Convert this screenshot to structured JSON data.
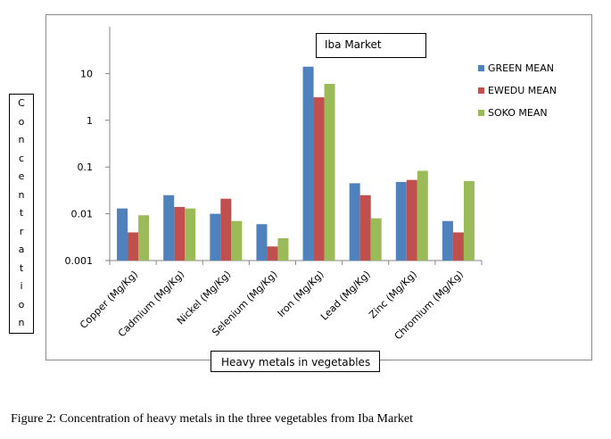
{
  "chart_data": {
    "type": "bar",
    "title": "Iba Market",
    "xlabel": "Heavy metals in vegetables",
    "ylabel": "Concentration",
    "yscale": "log",
    "ylim": [
      0.001,
      100
    ],
    "yticks": [
      0.001,
      0.01,
      0.1,
      1,
      10
    ],
    "ytick_labels": [
      "0.001",
      "0.01",
      "0.1",
      "1",
      "10"
    ],
    "grid": false,
    "legend_position": "right",
    "categories": [
      "Copper (Mg/Kg)",
      "Cadmium (Mg/Kg)",
      "Nickel (Mg/Kg)",
      "Selenium (Mg/Kg)",
      "Iron (Mg/Kg)",
      "Lead (Mg/Kg)",
      "Zinc (Mg/Kg)",
      "Chromium (Mg/Kg)"
    ],
    "series": [
      {
        "name": "GREEN MEAN",
        "color": "#4F81BD",
        "values": [
          0.013,
          0.025,
          0.01,
          0.006,
          14,
          0.045,
          0.048,
          0.007
        ]
      },
      {
        "name": "EWEDU MEAN",
        "color": "#C0504D",
        "values": [
          0.004,
          0.014,
          0.021,
          0.002,
          3.1,
          0.025,
          0.053,
          0.004
        ]
      },
      {
        "name": "SOKO MEAN",
        "color": "#9BBB59",
        "values": [
          0.0093,
          0.013,
          0.007,
          0.003,
          6.0,
          0.008,
          0.083,
          0.05
        ]
      }
    ]
  },
  "caption": "Figure 2: Concentration of heavy metals in the three vegetables from Iba Market"
}
